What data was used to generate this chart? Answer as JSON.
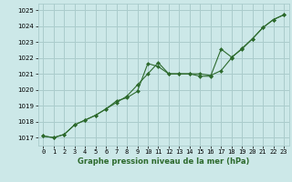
{
  "title": "Graphe pression niveau de la mer (hPa)",
  "bg_color": "#cce8e8",
  "grid_color": "#aacccc",
  "line_color": "#2d6a2d",
  "line1_y": [
    1017.1,
    1017.0,
    1017.2,
    1017.8,
    1018.1,
    1018.4,
    1018.8,
    1019.2,
    1019.6,
    1020.3,
    1021.0,
    1021.7,
    1021.0,
    1021.0,
    1021.0,
    1021.0,
    1020.9,
    1021.2,
    1022.0,
    1022.6,
    1023.2,
    1023.9,
    1024.4,
    1024.7
  ],
  "line2_y": [
    1017.1,
    1017.0,
    1017.2,
    1017.8,
    1018.1,
    1018.4,
    1018.8,
    1019.3,
    1019.5,
    1019.9,
    1021.65,
    1021.45,
    1021.0,
    1021.0,
    1021.0,
    1020.85,
    1020.85,
    1022.55,
    1022.05,
    1022.55,
    1023.2,
    1023.9,
    1024.4,
    1024.7
  ],
  "ylim": [
    1016.5,
    1025.4
  ],
  "xlim": [
    -0.5,
    23.5
  ],
  "yticks": [
    1017,
    1018,
    1019,
    1020,
    1021,
    1022,
    1023,
    1024,
    1025
  ],
  "xticks": [
    0,
    1,
    2,
    3,
    4,
    5,
    6,
    7,
    8,
    9,
    10,
    11,
    12,
    13,
    14,
    15,
    16,
    17,
    18,
    19,
    20,
    21,
    22,
    23
  ],
  "tick_fontsize": 5.0,
  "title_fontsize": 6.0,
  "marker_size": 2.0,
  "line_width": 0.8
}
